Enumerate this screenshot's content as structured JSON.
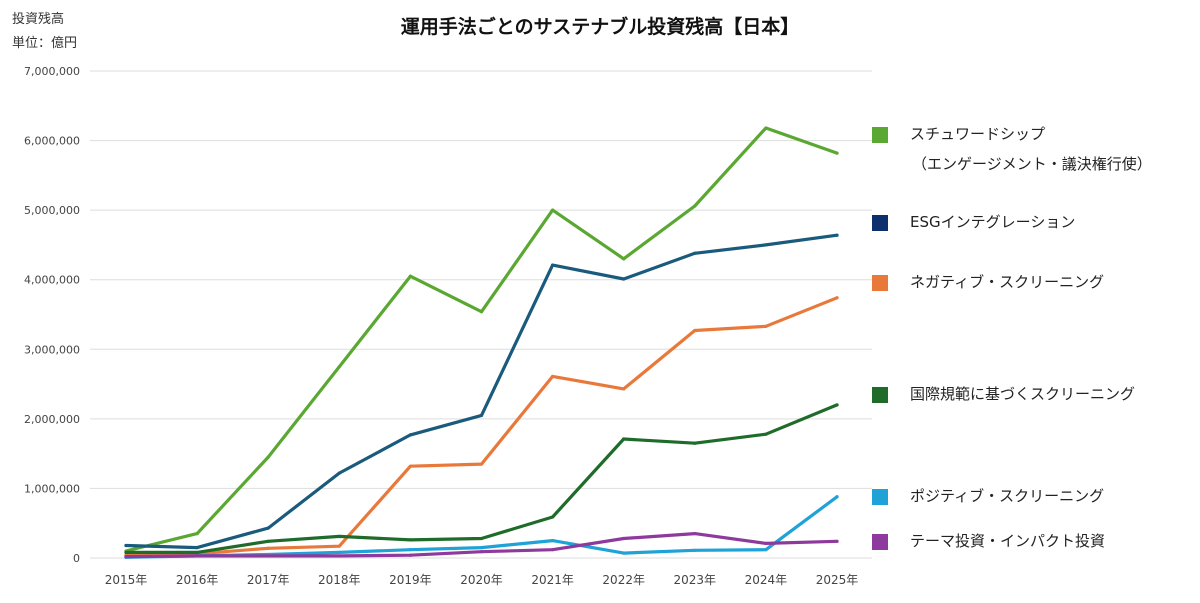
{
  "header": {
    "unit_line1": "投資残高",
    "unit_line2": "単位：億円"
  },
  "chart_data": {
    "type": "line",
    "title": "運用手法ごとのサステナブル投資残高【日本】",
    "xlabel": "",
    "ylabel": "",
    "categories": [
      "2015年",
      "2016年",
      "2017年",
      "2018年",
      "2019年",
      "2020年",
      "2021年",
      "2022年",
      "2023年",
      "2024年",
      "2025年"
    ],
    "ylim": [
      0,
      7000000
    ],
    "yticks": [
      0,
      1000000,
      2000000,
      3000000,
      4000000,
      5000000,
      6000000,
      7000000
    ],
    "ytick_labels": [
      "0",
      "1,000,000",
      "2,000,000",
      "3,000,000",
      "4,000,000",
      "5,000,000",
      "6,000,000",
      "7,000,000"
    ],
    "grid": true,
    "legend_position": "right",
    "series": [
      {
        "name": "スチュワードシップ",
        "name_line2": "（エンゲージメント・議決権行使）",
        "color": "#5aa832",
        "values": [
          100000,
          350000,
          1450000,
          2750000,
          4050000,
          3540000,
          5000000,
          4300000,
          5060000,
          6180000,
          5820000
        ]
      },
      {
        "name": "ESGインテグレーション",
        "color": "#1a5a7d",
        "values": [
          180000,
          150000,
          430000,
          1220000,
          1770000,
          2050000,
          4210000,
          4010000,
          4380000,
          4500000,
          4640000
        ]
      },
      {
        "name": "ネガティブ・スクリーニング",
        "color": "#e8793a",
        "values": [
          40000,
          60000,
          140000,
          170000,
          1320000,
          1350000,
          2610000,
          2430000,
          3270000,
          3330000,
          3740000
        ]
      },
      {
        "name": "国際規範に基づくスクリーニング",
        "color": "#1e6b2a",
        "values": [
          80000,
          80000,
          240000,
          310000,
          260000,
          280000,
          590000,
          1710000,
          1650000,
          1780000,
          2200000
        ]
      },
      {
        "name": "ポジティブ・スクリーニング",
        "color": "#1fa2d8",
        "values": [
          10000,
          30000,
          50000,
          80000,
          120000,
          150000,
          250000,
          70000,
          110000,
          120000,
          880000
        ]
      },
      {
        "name": "テーマ投資・インパクト投資",
        "color": "#8e3a9c",
        "values": [
          20000,
          30000,
          30000,
          30000,
          40000,
          90000,
          120000,
          280000,
          350000,
          210000,
          240000
        ]
      }
    ],
    "legend_swatch_colors": [
      "#5aa832",
      "#0d2f6e",
      "#e8793a",
      "#1e6b2a",
      "#1fa2d8",
      "#8e3a9c"
    ]
  }
}
